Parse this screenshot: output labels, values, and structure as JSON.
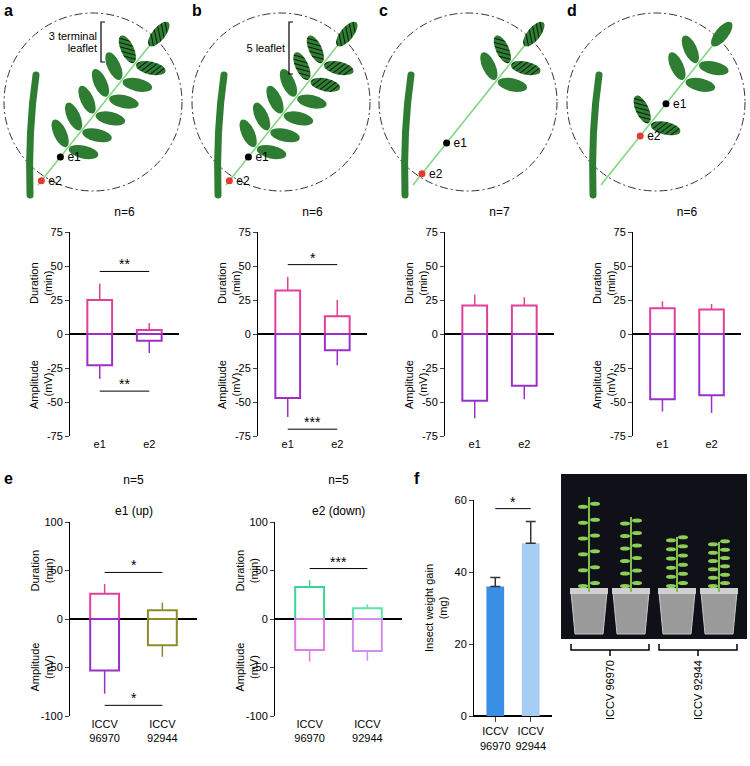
{
  "diagrams": [
    {
      "letter": "a",
      "label": "3 terminal leaflet",
      "electrodes": [
        "e1",
        "e2"
      ]
    },
    {
      "letter": "b",
      "label": "5 leaflet",
      "electrodes": [
        "e1",
        "e2"
      ]
    },
    {
      "letter": "c",
      "electrodes": [
        "e1",
        "e2"
      ]
    },
    {
      "letter": "d",
      "electrodes": [
        "e1",
        "e2"
      ]
    }
  ],
  "chart_data": [
    {
      "type": "bar",
      "title": "n=6",
      "categories": [
        "e1",
        "e2"
      ],
      "series": [
        {
          "name": "Duration (min)",
          "color": "#e0409c",
          "values": [
            25,
            3
          ],
          "errors": [
            12,
            5
          ]
        },
        {
          "name": "Amplitude (mV)",
          "color": "#9b30c8",
          "values": [
            -23,
            -5
          ],
          "errors": [
            10,
            9
          ]
        }
      ],
      "ylim": [
        -75,
        75
      ],
      "yticks": [
        -75,
        -50,
        -25,
        0,
        25,
        50,
        75
      ],
      "significance": [
        {
          "series": "Duration (min)",
          "label": "**"
        },
        {
          "series": "Amplitude (mV)",
          "label": "**"
        }
      ]
    },
    {
      "type": "bar",
      "title": "n=6",
      "categories": [
        "e1",
        "e2"
      ],
      "series": [
        {
          "name": "Duration (min)",
          "color": "#e0409c",
          "values": [
            32,
            13
          ],
          "errors": [
            10,
            12
          ]
        },
        {
          "name": "Amplitude (mV)",
          "color": "#9b30c8",
          "values": [
            -47,
            -12
          ],
          "errors": [
            14,
            11
          ]
        }
      ],
      "ylim": [
        -75,
        75
      ],
      "yticks": [
        -75,
        -50,
        -25,
        0,
        25,
        50,
        75
      ],
      "significance": [
        {
          "series": "Duration (min)",
          "label": "*"
        },
        {
          "series": "Amplitude (mV)",
          "label": "***"
        }
      ]
    },
    {
      "type": "bar",
      "title": "n=7",
      "categories": [
        "e1",
        "e2"
      ],
      "series": [
        {
          "name": "Duration (min)",
          "color": "#e0409c",
          "values": [
            21,
            21
          ],
          "errors": [
            8,
            6
          ]
        },
        {
          "name": "Amplitude (mV)",
          "color": "#9b30c8",
          "values": [
            -49,
            -38
          ],
          "errors": [
            13,
            10
          ]
        }
      ],
      "ylim": [
        -75,
        75
      ],
      "yticks": [
        -75,
        -50,
        -25,
        0,
        25,
        50,
        75
      ]
    },
    {
      "type": "bar",
      "title": "n=6",
      "categories": [
        "e1",
        "e2"
      ],
      "series": [
        {
          "name": "Duration (min)",
          "color": "#e0409c",
          "values": [
            19,
            18
          ],
          "errors": [
            5,
            4
          ]
        },
        {
          "name": "Amplitude (mV)",
          "color": "#9b30c8",
          "values": [
            -48,
            -45
          ],
          "errors": [
            9,
            13
          ]
        }
      ],
      "ylim": [
        -75,
        75
      ],
      "yticks": [
        -75,
        -50,
        -25,
        0,
        25,
        50,
        75
      ]
    },
    {
      "type": "bar",
      "panel": "e",
      "title": "n=5",
      "subtitle": "e1 (up)",
      "categories": [
        "ICCV 96970",
        "ICCV 92944"
      ],
      "series": [
        {
          "name": "Duration (min)",
          "colors": [
            "#e0409c",
            "#8c8c2a"
          ],
          "values": [
            26,
            9
          ],
          "errors": [
            10,
            8
          ]
        },
        {
          "name": "Amplitude (mV)",
          "colors": [
            "#9b30c8",
            "#8c8c2a"
          ],
          "values": [
            -53,
            -27
          ],
          "errors": [
            24,
            12
          ]
        }
      ],
      "ylim": [
        -100,
        100
      ],
      "yticks": [
        -100,
        -50,
        0,
        50,
        100
      ],
      "significance": [
        {
          "series": "Duration (min)",
          "label": "*"
        },
        {
          "series": "Amplitude (mV)",
          "label": "*"
        }
      ]
    },
    {
      "type": "bar",
      "title": "n=5",
      "subtitle": "e2 (down)",
      "categories": [
        "ICCV 96970",
        "ICCV 92944"
      ],
      "series": [
        {
          "name": "Duration (min)",
          "colors": [
            "#3ad694",
            "#5ee0a8"
          ],
          "values": [
            33,
            11
          ],
          "errors": [
            7,
            4
          ]
        },
        {
          "name": "Amplitude (mV)",
          "colors": [
            "#e07ee6",
            "#d090ec"
          ],
          "values": [
            -32,
            -33
          ],
          "errors": [
            12,
            10
          ]
        }
      ],
      "ylim": [
        -100,
        100
      ],
      "yticks": [
        -100,
        -50,
        0,
        50,
        100
      ],
      "significance": [
        {
          "series": "Duration (min)",
          "label": "***"
        }
      ]
    },
    {
      "type": "bar",
      "panel": "f",
      "ylabel": "Insect weight gain (mg)",
      "categories": [
        "ICCV 96970",
        "ICCV 92944"
      ],
      "values": [
        36,
        48
      ],
      "errors": [
        2.5,
        6
      ],
      "colors": [
        "#3a8ee6",
        "#a6cdf4"
      ],
      "ylim": [
        0,
        60
      ],
      "yticks": [
        0,
        20,
        40,
        60
      ],
      "significance": [
        {
          "label": "*"
        }
      ]
    }
  ],
  "photo": {
    "labels": [
      "ICCV 96970",
      "ICCV 92944"
    ]
  }
}
